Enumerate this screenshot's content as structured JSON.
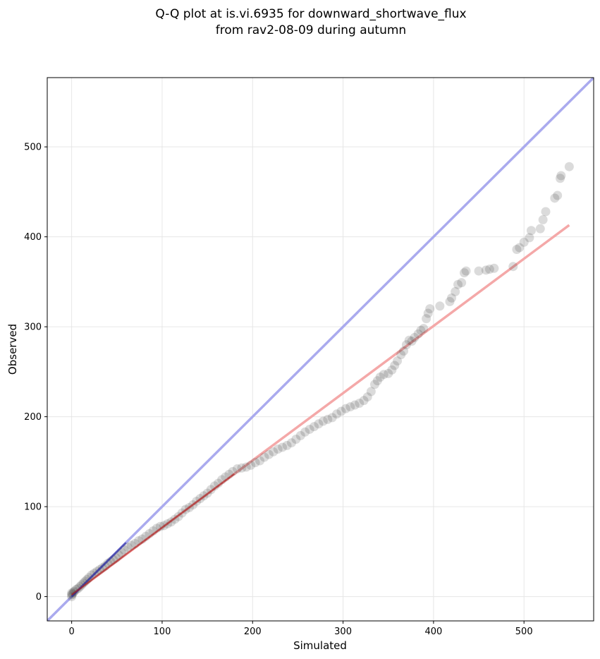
{
  "chart_data": {
    "type": "scatter",
    "title": [
      "Q-Q plot at is.vi.6935 for downward_shortwave_flux",
      "from rav2-08-09 during autumn"
    ],
    "xlabel": "Simulated",
    "ylabel": "Observed",
    "xlim": [
      -27,
      577
    ],
    "ylim": [
      -27,
      577
    ],
    "xticks": [
      0,
      100,
      200,
      300,
      400,
      500
    ],
    "yticks": [
      0,
      100,
      200,
      300,
      400,
      500
    ],
    "grid": true,
    "legend": "none",
    "colors": {
      "points": "#3a3a3a",
      "identity_line": "#aaaaee",
      "fit_line": "#f4a8a8",
      "lower_overlay": "#2020a0"
    },
    "reference_lines": [
      {
        "kind": "identity",
        "x": [
          -27,
          577
        ],
        "y": [
          -27,
          577
        ]
      },
      {
        "kind": "fit",
        "x": [
          0,
          550
        ],
        "y": [
          2,
          413
        ]
      }
    ],
    "points": [
      [
        0,
        0
      ],
      [
        0,
        2
      ],
      [
        0,
        4
      ],
      [
        1,
        3
      ],
      [
        2,
        5
      ],
      [
        3,
        6
      ],
      [
        5,
        8
      ],
      [
        7,
        9
      ],
      [
        9,
        11
      ],
      [
        11,
        13
      ],
      [
        13,
        15
      ],
      [
        15,
        17
      ],
      [
        17,
        19
      ],
      [
        19,
        21
      ],
      [
        22,
        24
      ],
      [
        25,
        26
      ],
      [
        28,
        28
      ],
      [
        31,
        30
      ],
      [
        34,
        32
      ],
      [
        37,
        34
      ],
      [
        40,
        37
      ],
      [
        43,
        39
      ],
      [
        46,
        41
      ],
      [
        49,
        43
      ],
      [
        52,
        46
      ],
      [
        55,
        49
      ],
      [
        58,
        52
      ],
      [
        62,
        55
      ],
      [
        66,
        57
      ],
      [
        70,
        59
      ],
      [
        74,
        62
      ],
      [
        78,
        64
      ],
      [
        82,
        67
      ],
      [
        86,
        70
      ],
      [
        90,
        73
      ],
      [
        94,
        76
      ],
      [
        98,
        78
      ],
      [
        102,
        79
      ],
      [
        106,
        81
      ],
      [
        110,
        83
      ],
      [
        114,
        86
      ],
      [
        118,
        89
      ],
      [
        122,
        93
      ],
      [
        126,
        97
      ],
      [
        130,
        99
      ],
      [
        134,
        102
      ],
      [
        138,
        106
      ],
      [
        142,
        109
      ],
      [
        146,
        112
      ],
      [
        150,
        115
      ],
      [
        154,
        119
      ],
      [
        158,
        123
      ],
      [
        162,
        126
      ],
      [
        166,
        130
      ],
      [
        170,
        133
      ],
      [
        174,
        136
      ],
      [
        178,
        139
      ],
      [
        183,
        142
      ],
      [
        188,
        143
      ],
      [
        193,
        144
      ],
      [
        198,
        146
      ],
      [
        203,
        149
      ],
      [
        208,
        151
      ],
      [
        213,
        155
      ],
      [
        218,
        158
      ],
      [
        223,
        161
      ],
      [
        228,
        164
      ],
      [
        233,
        166
      ],
      [
        238,
        168
      ],
      [
        243,
        171
      ],
      [
        248,
        175
      ],
      [
        253,
        179
      ],
      [
        258,
        183
      ],
      [
        263,
        186
      ],
      [
        268,
        189
      ],
      [
        273,
        192
      ],
      [
        278,
        195
      ],
      [
        283,
        197
      ],
      [
        288,
        199
      ],
      [
        293,
        203
      ],
      [
        298,
        206
      ],
      [
        303,
        209
      ],
      [
        308,
        211
      ],
      [
        313,
        213
      ],
      [
        318,
        215
      ],
      [
        323,
        218
      ],
      [
        327,
        222
      ],
      [
        331,
        228
      ],
      [
        335,
        236
      ],
      [
        338,
        240
      ],
      [
        341,
        244
      ],
      [
        345,
        247
      ],
      [
        350,
        248
      ],
      [
        354,
        252
      ],
      [
        357,
        257
      ],
      [
        360,
        262
      ],
      [
        364,
        269
      ],
      [
        367,
        273
      ],
      [
        370,
        280
      ],
      [
        373,
        285
      ],
      [
        376,
        284
      ],
      [
        379,
        288
      ],
      [
        383,
        292
      ],
      [
        386,
        296
      ],
      [
        389,
        298
      ],
      [
        392,
        309
      ],
      [
        394,
        315
      ],
      [
        396,
        320
      ],
      [
        407,
        323
      ],
      [
        418,
        328
      ],
      [
        420,
        332
      ],
      [
        424,
        339
      ],
      [
        427,
        347
      ],
      [
        431,
        349
      ],
      [
        434,
        360
      ],
      [
        436,
        362
      ],
      [
        450,
        362
      ],
      [
        458,
        363
      ],
      [
        462,
        364
      ],
      [
        467,
        365
      ],
      [
        488,
        367
      ],
      [
        492,
        386
      ],
      [
        495,
        388
      ],
      [
        500,
        394
      ],
      [
        506,
        399
      ],
      [
        508,
        407
      ],
      [
        518,
        409
      ],
      [
        521,
        419
      ],
      [
        524,
        428
      ],
      [
        534,
        443
      ],
      [
        537,
        446
      ],
      [
        540,
        465
      ],
      [
        541,
        468
      ],
      [
        550,
        478
      ]
    ]
  }
}
